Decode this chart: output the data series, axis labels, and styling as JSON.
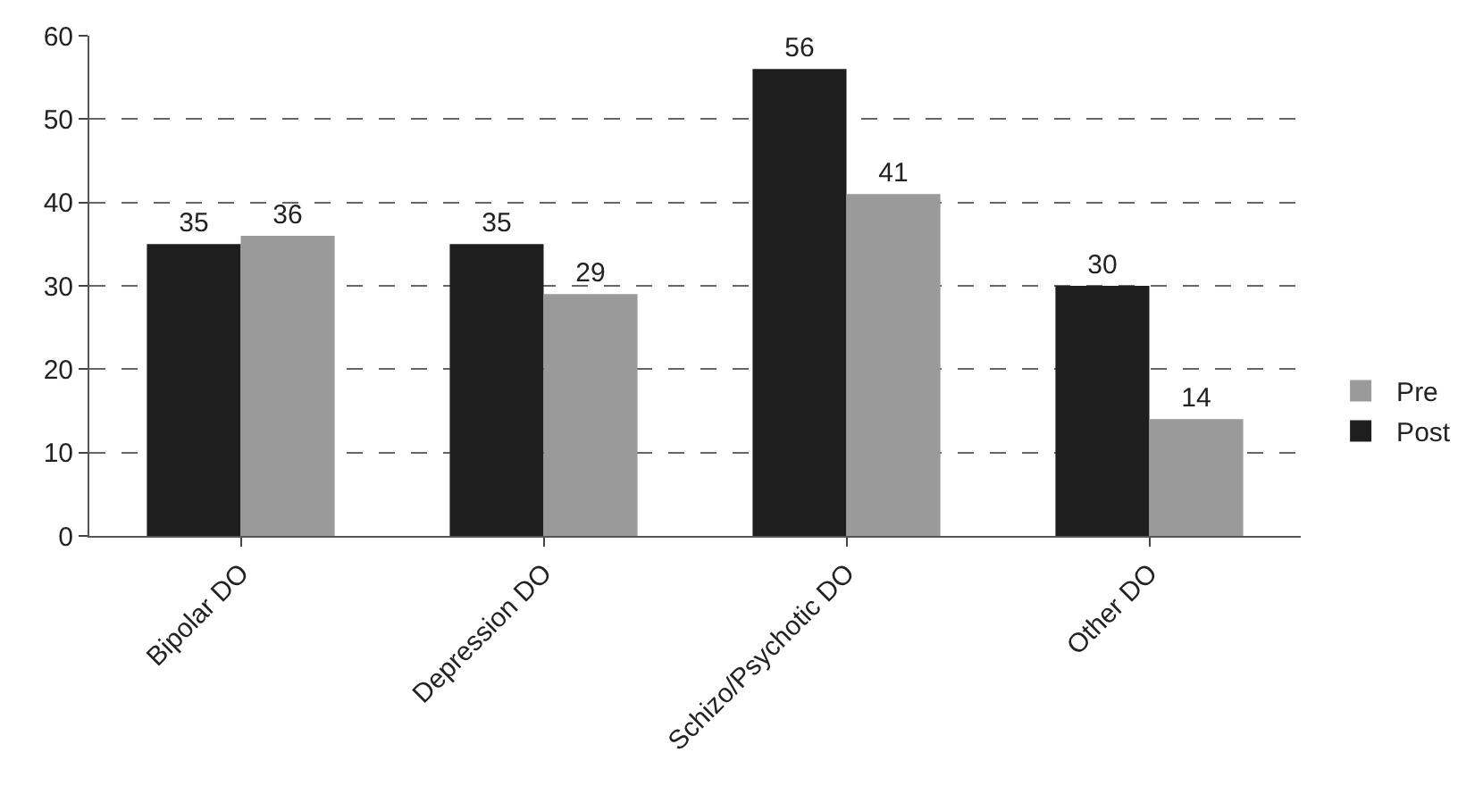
{
  "chart_data": {
    "type": "bar",
    "categories": [
      "Bipolar DO",
      "Depression DO",
      "Schizo/Psychotic DO",
      "Other DO"
    ],
    "series": [
      {
        "name": "Post",
        "color": "#1e1e1e",
        "values": [
          35,
          35,
          56,
          30
        ]
      },
      {
        "name": "Pre",
        "color": "#9a9a9a",
        "values": [
          36,
          29,
          41,
          14
        ]
      }
    ],
    "ylim": [
      0,
      60
    ],
    "yticks": [
      0,
      10,
      20,
      30,
      40,
      50,
      60
    ],
    "grid": "y",
    "legend": "right",
    "data_labels": true
  }
}
